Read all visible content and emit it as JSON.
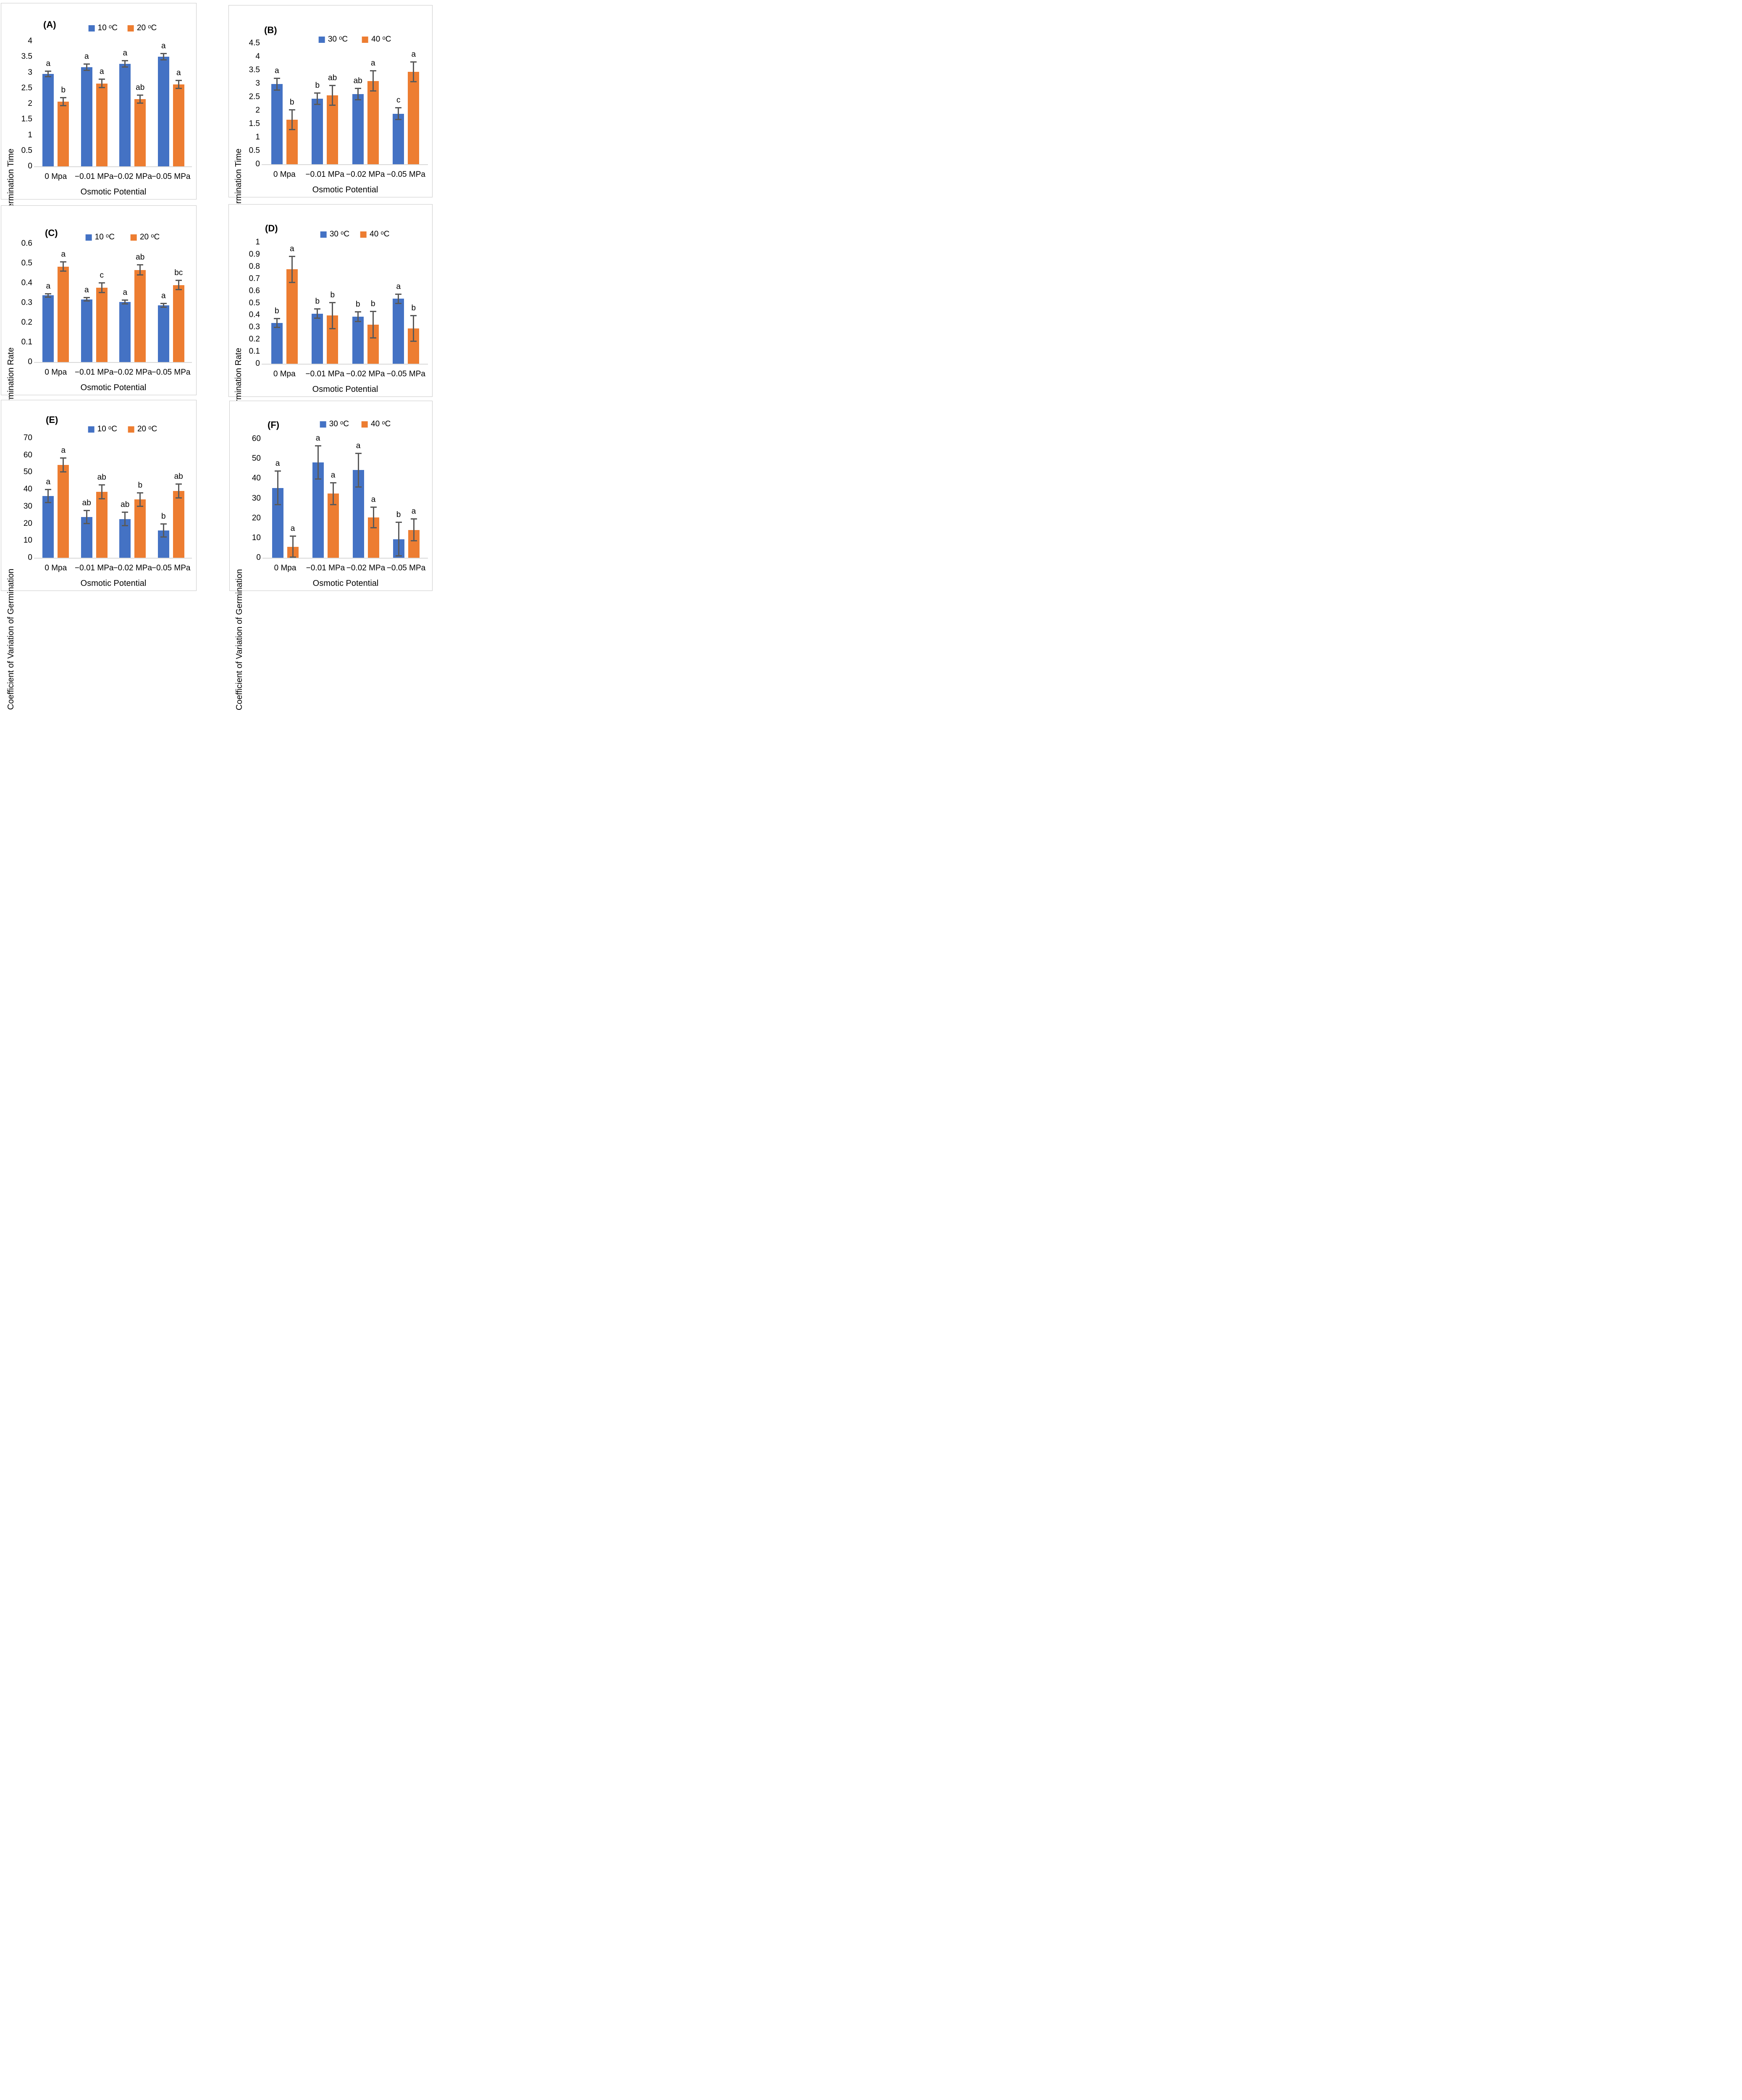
{
  "colors": {
    "series_blue": "#4472C4",
    "series_orange": "#ED7D31",
    "error_bar": "#595959",
    "axis_line": "#D9D9D9",
    "panel_border": "#C9C9C9",
    "text": "#000000"
  },
  "chart_data": [
    {
      "type": "bar",
      "panel_label": "(A)",
      "ylabel": "Mean Germination Time",
      "xlabel": "Osmotic Potential",
      "categories": [
        "0 Mpa",
        "−0.01 MPa",
        "−0.02 MPa",
        "−0.05 MPa"
      ],
      "ylim": [
        0,
        4
      ],
      "yticks": [
        "0",
        "0.5",
        "1",
        "1.5",
        "2",
        "2.5",
        "3",
        "3.5",
        "4"
      ],
      "legend_position": "top",
      "grid": false,
      "series": [
        {
          "name": "10 ᵒC",
          "color": "#4472C4",
          "values": [
            2.95,
            3.17,
            3.28,
            3.5
          ],
          "errors": [
            0.11,
            0.12,
            0.12,
            0.12
          ],
          "letters": [
            "a",
            "a",
            "a",
            "a"
          ]
        },
        {
          "name": "20 ᵒC",
          "color": "#ED7D31",
          "values": [
            2.07,
            2.65,
            2.15,
            2.62
          ],
          "errors": [
            0.15,
            0.15,
            0.15,
            0.15
          ],
          "letters": [
            "b",
            "a",
            "ab",
            "a"
          ]
        }
      ]
    },
    {
      "type": "bar",
      "panel_label": "(B)",
      "ylabel": "Mean Germination Time",
      "xlabel": "Osmotic Potential",
      "categories": [
        "0 Mpa",
        "−0.01 MPa",
        "−0.02 MPa",
        "−0.05 MPa"
      ],
      "ylim": [
        0,
        4.5
      ],
      "yticks": [
        "0",
        "0.5",
        "1",
        "1.5",
        "2",
        "2.5",
        "3",
        "3.5",
        "4",
        "4.5"
      ],
      "legend_position": "top",
      "grid": false,
      "series": [
        {
          "name": "30 ᵒC",
          "color": "#4472C4",
          "values": [
            2.98,
            2.44,
            2.61,
            1.88
          ],
          "errors": [
            0.24,
            0.23,
            0.23,
            0.24
          ],
          "letters": [
            "a",
            "b",
            "ab",
            "c"
          ]
        },
        {
          "name": "40 ᵒC",
          "color": "#ED7D31",
          "values": [
            1.66,
            2.56,
            3.1,
            3.44
          ],
          "errors": [
            0.39,
            0.39,
            0.4,
            0.39
          ],
          "letters": [
            "b",
            "ab",
            "a",
            "a"
          ]
        }
      ]
    },
    {
      "type": "bar",
      "panel_label": "(C)",
      "ylabel": "Mean Germination Rate",
      "xlabel": "Osmotic Potential",
      "categories": [
        "0 Mpa",
        "−0.01 MPa",
        "−0.02 MPa",
        "−0.05 MPa"
      ],
      "ylim": [
        0,
        0.6
      ],
      "yticks": [
        "0",
        "0.1",
        "0.2",
        "0.3",
        "0.4",
        "0.5",
        "0.6"
      ],
      "legend_position": "top",
      "grid": false,
      "series": [
        {
          "name": "10 ᵒC",
          "color": "#4472C4",
          "values": [
            0.338,
            0.318,
            0.304,
            0.287
          ],
          "errors": [
            0.012,
            0.012,
            0.012,
            0.012
          ],
          "letters": [
            "a",
            "a",
            "a",
            "a"
          ]
        },
        {
          "name": "20 ᵒC",
          "color": "#ED7D31",
          "values": [
            0.484,
            0.377,
            0.467,
            0.39
          ],
          "errors": [
            0.027,
            0.028,
            0.028,
            0.027
          ],
          "letters": [
            "a",
            "c",
            "ab",
            "bc"
          ]
        }
      ]
    },
    {
      "type": "bar",
      "panel_label": "(D)",
      "ylabel": "Mean Germination Rate",
      "xlabel": "Osmotic Potential",
      "categories": [
        "0 Mpa",
        "−0.01 MPa",
        "−0.02 MPa",
        "−0.05 MPa"
      ],
      "ylim": [
        0,
        1
      ],
      "yticks": [
        "0",
        "0.1",
        "0.2",
        "0.3",
        "0.4",
        "0.5",
        "0.6",
        "0.7",
        "0.8",
        "0.9",
        "1"
      ],
      "legend_position": "top",
      "grid": false,
      "series": [
        {
          "name": "30 ᵒC",
          "color": "#4472C4",
          "values": [
            0.335,
            0.413,
            0.388,
            0.535
          ],
          "errors": [
            0.042,
            0.043,
            0.045,
            0.042
          ],
          "letters": [
            "b",
            "b",
            "b",
            "a"
          ]
        },
        {
          "name": "40 ᵒC",
          "color": "#ED7D31",
          "values": [
            0.777,
            0.397,
            0.322,
            0.291
          ],
          "errors": [
            0.113,
            0.113,
            0.113,
            0.112
          ],
          "letters": [
            "a",
            "b",
            "b",
            "b"
          ]
        }
      ]
    },
    {
      "type": "bar",
      "panel_label": "(E)",
      "ylabel": "Coefficient  of Variation of Germination",
      "xlabel": "Osmotic Potential",
      "categories": [
        "0 Mpa",
        "−0.01 MPa",
        "−0.02 MPa",
        "−0.05 MPa"
      ],
      "ylim": [
        0,
        70
      ],
      "yticks": [
        "0",
        "10",
        "20",
        "30",
        "40",
        "50",
        "60",
        "70"
      ],
      "legend_position": "top",
      "grid": false,
      "series": [
        {
          "name": "10 ᵒC",
          "color": "#4472C4",
          "values": [
            36.2,
            23.8,
            22.7,
            16.0
          ],
          "errors": [
            4.2,
            4.1,
            4.2,
            4.2
          ],
          "letters": [
            "a",
            "ab",
            "ab",
            "b"
          ]
        },
        {
          "name": "20 ᵒC",
          "color": "#ED7D31",
          "values": [
            54.2,
            38.6,
            34.1,
            39.0
          ],
          "errors": [
            4.4,
            4.4,
            4.3,
            4.4
          ],
          "letters": [
            "a",
            "ab",
            "b",
            "ab"
          ]
        }
      ]
    },
    {
      "type": "bar",
      "panel_label": "(F)",
      "ylabel": "Coefficient of Variation of Germination",
      "xlabel": "Osmotic Potential",
      "categories": [
        "0 Mpa",
        "−0.01 MPa",
        "−0.02 MPa",
        "−0.05 MPa"
      ],
      "ylim": [
        0,
        60
      ],
      "yticks": [
        "0",
        "10",
        "20",
        "30",
        "40",
        "50",
        "60"
      ],
      "legend_position": "top",
      "grid": false,
      "series": [
        {
          "name": "30 ᵒC",
          "color": "#4472C4",
          "values": [
            35.2,
            48.1,
            44.3,
            9.4
          ],
          "errors": [
            8.8,
            8.7,
            8.8,
            8.8
          ],
          "letters": [
            "a",
            "a",
            "a",
            "b"
          ]
        },
        {
          "name": "40 ᵒC",
          "color": "#ED7D31",
          "values": [
            5.5,
            32.4,
            20.4,
            14.1
          ],
          "errors": [
            5.7,
            5.8,
            5.5,
            5.8
          ],
          "letters": [
            "a",
            "a",
            "a",
            "a"
          ]
        }
      ]
    }
  ]
}
